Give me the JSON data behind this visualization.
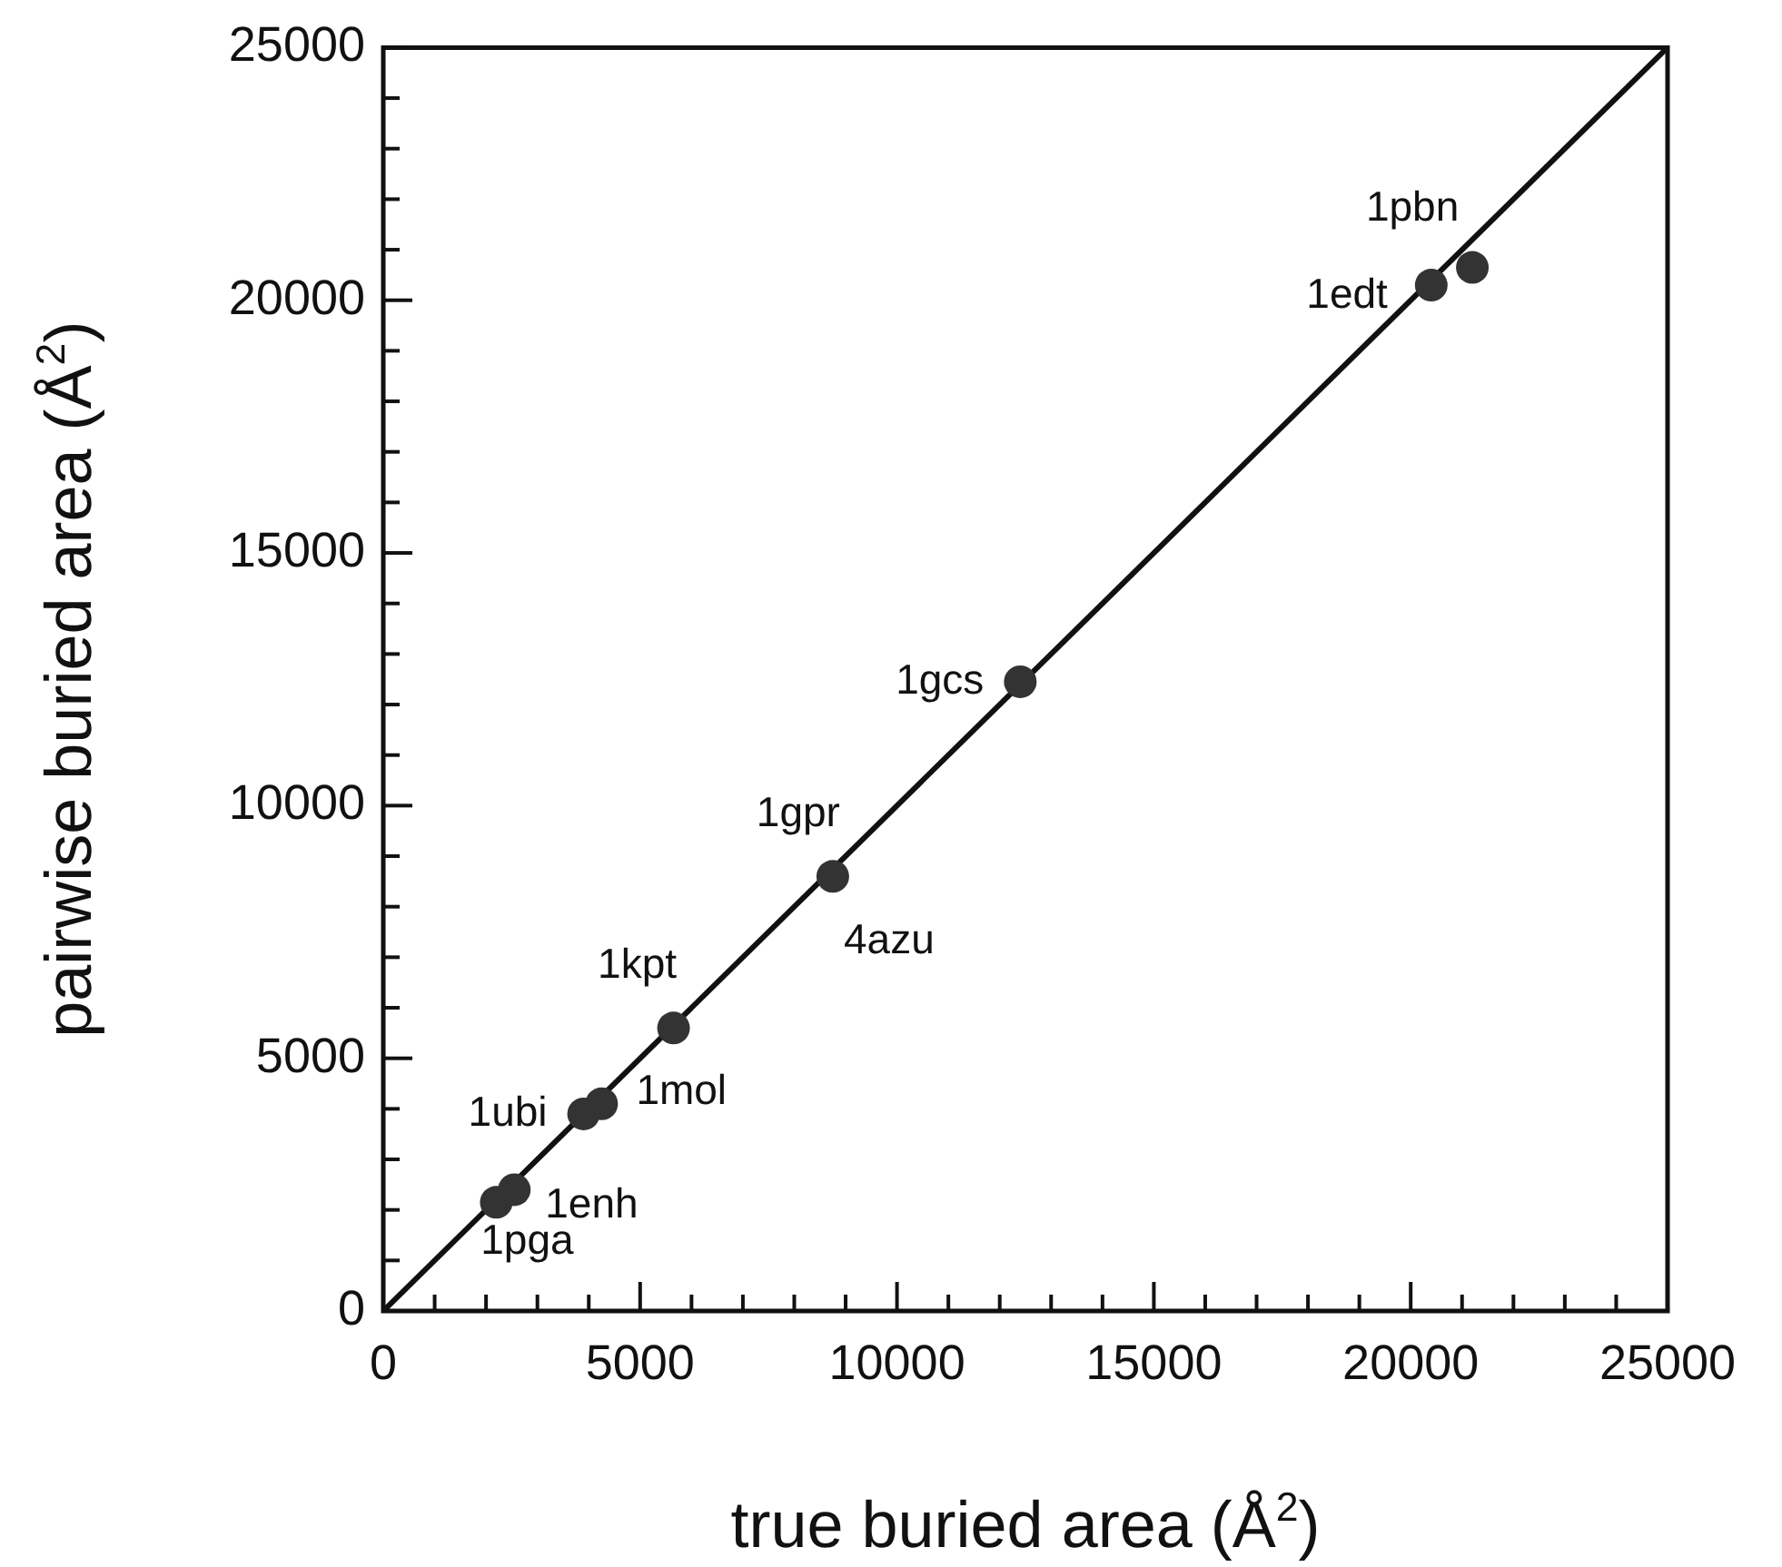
{
  "chart_data": {
    "type": "scatter",
    "xlabel": "true buried area (Å$^{2}$)",
    "ylabel": "pairwise buried area (Å$^{2}$)",
    "xlim": [
      0,
      25000
    ],
    "ylim": [
      0,
      25000
    ],
    "xticks": [
      0,
      {
        "value": 1000,
        "label": null
      },
      {
        "value": 2000,
        "label": null
      },
      {
        "value": 3000,
        "label": null
      },
      {
        "value": 4000,
        "label": null
      },
      5000,
      {
        "value": 6000,
        "label": null
      },
      {
        "value": 7000,
        "label": null
      },
      {
        "value": 8000,
        "label": null
      },
      {
        "value": 9000,
        "label": null
      },
      10000,
      {
        "value": 11000,
        "label": null
      },
      {
        "value": 12000,
        "label": null
      },
      {
        "value": 13000,
        "label": null
      },
      {
        "value": 14000,
        "label": null
      },
      15000,
      {
        "value": 16000,
        "label": null
      },
      {
        "value": 17000,
        "label": null
      },
      {
        "value": 18000,
        "label": null
      },
      {
        "value": 19000,
        "label": null
      },
      20000,
      {
        "value": 21000,
        "label": null
      },
      {
        "value": 22000,
        "label": null
      },
      {
        "value": 23000,
        "label": null
      },
      {
        "value": 24000,
        "label": null
      },
      25000
    ],
    "yticks": [
      0,
      {
        "value": 1000,
        "label": null
      },
      {
        "value": 2000,
        "label": null
      },
      {
        "value": 3000,
        "label": null
      },
      {
        "value": 4000,
        "label": null
      },
      5000,
      {
        "value": 6000,
        "label": null
      },
      {
        "value": 7000,
        "label": null
      },
      {
        "value": 8000,
        "label": null
      },
      {
        "value": 9000,
        "label": null
      },
      10000,
      {
        "value": 11000,
        "label": null
      },
      {
        "value": 12000,
        "label": null
      },
      {
        "value": 13000,
        "label": null
      },
      {
        "value": 14000,
        "label": null
      },
      15000,
      {
        "value": 16000,
        "label": null
      },
      {
        "value": 17000,
        "label": null
      },
      {
        "value": 18000,
        "label": null
      },
      {
        "value": 19000,
        "label": null
      },
      20000,
      {
        "value": 21000,
        "label": null
      },
      {
        "value": 22000,
        "label": null
      },
      {
        "value": 23000,
        "label": null
      },
      {
        "value": 24000,
        "label": null
      },
      25000
    ],
    "grid": false,
    "legend": false,
    "marker": "circle",
    "series": [
      {
        "color": "#333333",
        "x": [
          2200,
          2550,
          3900,
          4250,
          5650,
          8750,
          12400,
          20400,
          21200
        ],
        "values": [
          2150,
          2400,
          3900,
          4100,
          5600,
          8600,
          12450,
          20300,
          20650
        ]
      },
      {
        "type": "line",
        "color": "#111111",
        "marker": "none",
        "line_style": "solid",
        "x": [
          0,
          25000
        ],
        "values": [
          0,
          25000
        ]
      }
    ],
    "annotations": [
      {
        "text": "1pga",
        "x": 2200,
        "y": 2150
      },
      {
        "text": "1enh",
        "x": 2550,
        "y": 2400
      },
      {
        "text": "1ubi",
        "x": 3900,
        "y": 3900
      },
      {
        "text": "1mol",
        "x": 4250,
        "y": 4100
      },
      {
        "text": "1kpt",
        "x": 5650,
        "y": 5600
      },
      {
        "text": "1gpr",
        "x": 8750,
        "y": 8600
      },
      {
        "text": "4azu",
        "x": 8750,
        "y": 8600
      },
      {
        "text": "1gcs",
        "x": 12400,
        "y": 12450
      },
      {
        "text": "1edt",
        "x": 20400,
        "y": 20300
      },
      {
        "text": "1pbn",
        "x": 21200,
        "y": 20650
      }
    ]
  }
}
